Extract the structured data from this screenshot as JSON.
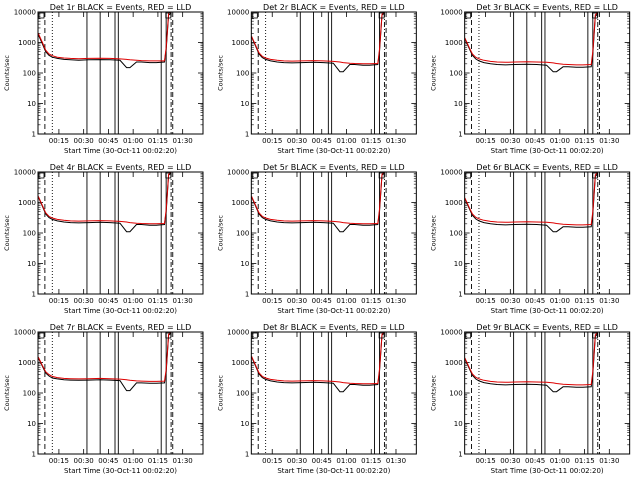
{
  "page": {
    "layout": "3x3 grid of identical semi-log time-series panels",
    "colors": {
      "events": "#000000",
      "lld": "#dd0000",
      "background": "#ffffff",
      "axes": "#000000"
    }
  },
  "shared_axes": {
    "xlabel": "Start Time (30-Oct-11 00:02:20)",
    "ylabel": "Counts/sec",
    "x_tick_labels": [
      "00:15",
      "00:30",
      "00:45",
      "01:00",
      "01:15",
      "01:30"
    ],
    "x_tick_minutes": [
      15,
      30,
      45,
      60,
      75,
      90
    ],
    "xlim_minutes": [
      2.33,
      102.33
    ],
    "y_tick_labels": [
      "1",
      "10",
      "100",
      "1000",
      "10000"
    ],
    "y_tick_values": [
      1,
      10,
      100,
      1000,
      10000
    ],
    "ylim": [
      1,
      10000
    ],
    "yscale": "log"
  },
  "chart_data": [
    {
      "type": "line",
      "title": "Det 1r BLACK = Events, RED = LLD",
      "x_minutes": [
        2.5,
        5,
        7,
        9,
        11,
        14,
        18,
        22,
        27,
        33,
        40,
        46,
        52,
        56,
        58,
        62,
        65,
        70,
        74,
        79,
        80,
        81.5,
        83
      ],
      "series": [
        {
          "name": "Events",
          "color": "#000000",
          "y": [
            1800,
            900,
            500,
            380,
            330,
            300,
            280,
            270,
            260,
            270,
            275,
            270,
            260,
            150,
            150,
            230,
            230,
            220,
            220,
            230,
            600,
            8000,
            9000
          ]
        },
        {
          "name": "LLD",
          "color": "#dd0000",
          "y": [
            2000,
            1000,
            560,
            420,
            370,
            330,
            310,
            300,
            295,
            300,
            305,
            300,
            290,
            280,
            270,
            260,
            255,
            250,
            250,
            250,
            700,
            9000,
            10000
          ]
        }
      ],
      "vertical_lines": {
        "dashed": [
          6.5,
          84
        ],
        "dotted": [
          11
        ],
        "solid": [
          32,
          40,
          49,
          51,
          77,
          80
        ],
        "dash_dot": [
          83
        ]
      }
    },
    {
      "type": "line",
      "title": "Det 2r BLACK = Events, RED = LLD",
      "x_minutes": [
        2.5,
        5,
        7,
        9,
        11,
        14,
        18,
        22,
        27,
        33,
        40,
        46,
        52,
        56,
        58,
        62,
        65,
        70,
        74,
        79,
        80,
        81.5,
        83
      ],
      "series": [
        {
          "name": "Events",
          "color": "#000000",
          "y": [
            1500,
            750,
            420,
            320,
            280,
            250,
            230,
            220,
            215,
            220,
            225,
            220,
            210,
            110,
            110,
            190,
            190,
            180,
            180,
            190,
            500,
            8000,
            9000
          ]
        },
        {
          "name": "LLD",
          "color": "#dd0000",
          "y": [
            1600,
            800,
            460,
            350,
            310,
            280,
            260,
            250,
            245,
            250,
            255,
            250,
            240,
            230,
            220,
            210,
            205,
            200,
            200,
            205,
            600,
            8500,
            10000
          ]
        }
      ],
      "vertical_lines": {
        "dashed": [
          6.5,
          84
        ],
        "dotted": [
          11
        ],
        "solid": [
          32,
          40,
          49,
          51,
          77,
          80
        ],
        "dash_dot": [
          83
        ]
      }
    },
    {
      "type": "line",
      "title": "Det 3r BLACK = Events, RED = LLD",
      "x_minutes": [
        2.5,
        5,
        7,
        9,
        11,
        14,
        18,
        22,
        27,
        33,
        40,
        46,
        52,
        56,
        58,
        62,
        65,
        70,
        74,
        79,
        80,
        81.5,
        83
      ],
      "series": [
        {
          "name": "Events",
          "color": "#000000",
          "y": [
            1300,
            650,
            380,
            290,
            250,
            220,
            200,
            190,
            185,
            190,
            195,
            190,
            180,
            110,
            110,
            160,
            160,
            155,
            155,
            160,
            400,
            7000,
            9000
          ]
        },
        {
          "name": "LLD",
          "color": "#dd0000",
          "y": [
            1400,
            700,
            420,
            330,
            290,
            260,
            240,
            230,
            225,
            230,
            235,
            230,
            225,
            215,
            205,
            195,
            190,
            185,
            185,
            190,
            500,
            8000,
            10000
          ]
        }
      ],
      "vertical_lines": {
        "dashed": [
          6.5,
          84
        ],
        "dotted": [
          11
        ],
        "solid": [
          32,
          40,
          49,
          51,
          77,
          80
        ],
        "dash_dot": [
          83
        ]
      }
    },
    {
      "type": "line",
      "title": "Det 4r BLACK = Events, RED = LLD",
      "x_minutes": [
        2.5,
        5,
        7,
        9,
        11,
        14,
        18,
        22,
        27,
        33,
        40,
        46,
        52,
        56,
        58,
        62,
        65,
        70,
        74,
        79,
        80,
        81.5,
        83
      ],
      "series": [
        {
          "name": "Events",
          "color": "#000000",
          "y": [
            1500,
            750,
            420,
            320,
            280,
            250,
            230,
            220,
            215,
            220,
            225,
            220,
            210,
            110,
            110,
            190,
            190,
            180,
            180,
            190,
            500,
            8000,
            9000
          ]
        },
        {
          "name": "LLD",
          "color": "#dd0000",
          "y": [
            1600,
            800,
            460,
            350,
            310,
            280,
            260,
            250,
            245,
            250,
            255,
            250,
            240,
            230,
            220,
            210,
            205,
            200,
            200,
            205,
            600,
            8500,
            10000
          ]
        }
      ],
      "vertical_lines": {
        "dashed": [
          6.5,
          84
        ],
        "dotted": [
          11
        ],
        "solid": [
          32,
          40,
          49,
          51,
          77,
          80
        ],
        "dash_dot": [
          83
        ]
      }
    },
    {
      "type": "line",
      "title": "Det 5r BLACK = Events, RED = LLD",
      "x_minutes": [
        2.5,
        5,
        7,
        9,
        11,
        14,
        18,
        22,
        27,
        33,
        40,
        46,
        52,
        56,
        58,
        62,
        65,
        70,
        74,
        79,
        80,
        81.5,
        83
      ],
      "series": [
        {
          "name": "Events",
          "color": "#000000",
          "y": [
            1500,
            750,
            420,
            320,
            280,
            250,
            230,
            220,
            215,
            220,
            225,
            220,
            210,
            110,
            110,
            190,
            190,
            180,
            180,
            190,
            500,
            8000,
            9000
          ]
        },
        {
          "name": "LLD",
          "color": "#dd0000",
          "y": [
            1600,
            800,
            460,
            350,
            310,
            280,
            260,
            250,
            245,
            250,
            255,
            250,
            240,
            230,
            220,
            210,
            205,
            200,
            200,
            205,
            600,
            8500,
            10000
          ]
        }
      ],
      "vertical_lines": {
        "dashed": [
          6.5,
          84
        ],
        "dotted": [
          11
        ],
        "solid": [
          32,
          40,
          49,
          51,
          77,
          80
        ],
        "dash_dot": [
          83
        ]
      }
    },
    {
      "type": "line",
      "title": "Det 6r BLACK = Events, RED = LLD",
      "x_minutes": [
        2.5,
        5,
        7,
        9,
        11,
        14,
        18,
        22,
        27,
        33,
        40,
        46,
        52,
        56,
        58,
        62,
        65,
        70,
        74,
        79,
        80,
        81.5,
        83
      ],
      "series": [
        {
          "name": "Events",
          "color": "#000000",
          "y": [
            1300,
            650,
            380,
            290,
            250,
            220,
            200,
            190,
            185,
            190,
            195,
            190,
            180,
            110,
            110,
            160,
            160,
            155,
            155,
            160,
            400,
            7000,
            9000
          ]
        },
        {
          "name": "LLD",
          "color": "#dd0000",
          "y": [
            1400,
            700,
            420,
            330,
            290,
            260,
            240,
            230,
            225,
            230,
            235,
            230,
            225,
            215,
            205,
            195,
            190,
            185,
            185,
            190,
            500,
            8000,
            10000
          ]
        }
      ],
      "vertical_lines": {
        "dashed": [
          6.5,
          84
        ],
        "dotted": [
          11
        ],
        "solid": [
          32,
          40,
          49,
          51,
          77,
          80
        ],
        "dash_dot": [
          83
        ]
      }
    },
    {
      "type": "line",
      "title": "Det 7r BLACK = Events, RED = LLD",
      "x_minutes": [
        2.5,
        5,
        7,
        9,
        11,
        14,
        18,
        22,
        27,
        33,
        40,
        46,
        52,
        56,
        58,
        62,
        65,
        70,
        74,
        79,
        80,
        81.5,
        83
      ],
      "series": [
        {
          "name": "Events",
          "color": "#000000",
          "y": [
            1400,
            750,
            450,
            360,
            310,
            290,
            270,
            265,
            260,
            265,
            270,
            265,
            255,
            120,
            120,
            215,
            215,
            210,
            210,
            215,
            500,
            8000,
            9000
          ]
        },
        {
          "name": "LLD",
          "color": "#dd0000",
          "y": [
            1500,
            800,
            500,
            400,
            350,
            320,
            300,
            295,
            290,
            295,
            300,
            295,
            285,
            270,
            260,
            250,
            245,
            240,
            240,
            245,
            600,
            8500,
            10000
          ]
        }
      ],
      "vertical_lines": {
        "dashed": [
          6.5,
          84
        ],
        "dotted": [
          11
        ],
        "solid": [
          32,
          40,
          49,
          51,
          77,
          80
        ],
        "dash_dot": [
          83
        ]
      }
    },
    {
      "type": "line",
      "title": "Det 8r BLACK = Events, RED = LLD",
      "x_minutes": [
        2.5,
        5,
        7,
        9,
        11,
        14,
        18,
        22,
        27,
        33,
        40,
        46,
        52,
        56,
        58,
        62,
        65,
        70,
        74,
        79,
        80,
        81.5,
        83
      ],
      "series": [
        {
          "name": "Events",
          "color": "#000000",
          "y": [
            1500,
            750,
            420,
            320,
            280,
            250,
            230,
            220,
            215,
            220,
            225,
            220,
            210,
            110,
            110,
            190,
            190,
            180,
            180,
            190,
            500,
            8000,
            9000
          ]
        },
        {
          "name": "LLD",
          "color": "#dd0000",
          "y": [
            1600,
            800,
            460,
            350,
            310,
            280,
            260,
            250,
            245,
            250,
            255,
            250,
            240,
            230,
            220,
            210,
            205,
            200,
            200,
            205,
            600,
            8500,
            10000
          ]
        }
      ],
      "vertical_lines": {
        "dashed": [
          6.5,
          84
        ],
        "dotted": [
          11
        ],
        "solid": [
          32,
          40,
          49,
          51,
          77,
          80
        ],
        "dash_dot": [
          83
        ]
      }
    },
    {
      "type": "line",
      "title": "Det 9r BLACK = Events, RED = LLD",
      "x_minutes": [
        2.5,
        5,
        7,
        9,
        11,
        14,
        18,
        22,
        27,
        33,
        40,
        46,
        52,
        56,
        58,
        62,
        65,
        70,
        74,
        79,
        80,
        81.5,
        83
      ],
      "series": [
        {
          "name": "Events",
          "color": "#000000",
          "y": [
            1300,
            650,
            380,
            290,
            250,
            220,
            200,
            190,
            185,
            190,
            195,
            190,
            180,
            110,
            110,
            160,
            160,
            155,
            155,
            160,
            400,
            7000,
            9000
          ]
        },
        {
          "name": "LLD",
          "color": "#dd0000",
          "y": [
            1400,
            700,
            420,
            330,
            290,
            260,
            240,
            230,
            225,
            230,
            235,
            230,
            225,
            215,
            205,
            195,
            190,
            185,
            185,
            190,
            500,
            8000,
            10000
          ]
        }
      ],
      "vertical_lines": {
        "dashed": [
          6.5,
          84
        ],
        "dotted": [
          11
        ],
        "solid": [
          32,
          40,
          49,
          51,
          77,
          80
        ],
        "dash_dot": [
          83
        ]
      }
    }
  ]
}
